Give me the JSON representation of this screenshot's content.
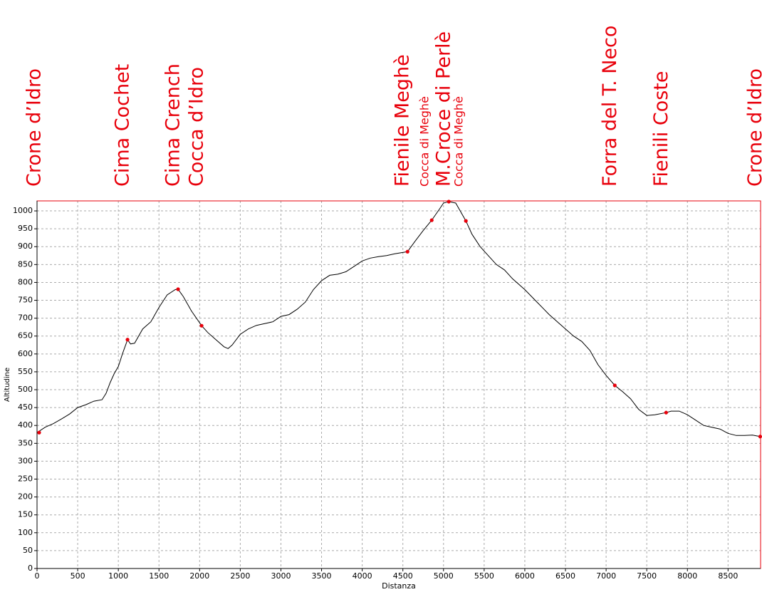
{
  "chart_data": {
    "type": "line",
    "xlabel": "Distanza",
    "ylabel": "Altitudine",
    "xlim": [
      0,
      8900
    ],
    "ylim": [
      0,
      1028
    ],
    "xticks": [
      0,
      500,
      1000,
      1500,
      2000,
      2500,
      3000,
      3500,
      4000,
      4500,
      5000,
      5500,
      6000,
      6500,
      7000,
      7500,
      8000,
      8500
    ],
    "yticks": [
      0,
      50,
      100,
      150,
      200,
      250,
      300,
      350,
      400,
      450,
      500,
      550,
      600,
      650,
      700,
      750,
      800,
      850,
      900,
      950,
      1000
    ],
    "grid": true,
    "x": [
      0,
      100,
      200,
      300,
      400,
      500,
      600,
      700,
      800,
      850,
      900,
      950,
      1000,
      1050,
      1113,
      1150,
      1200,
      1300,
      1400,
      1500,
      1600,
      1700,
      1735,
      1800,
      1900,
      2024,
      2100,
      2200,
      2300,
      2350,
      2400,
      2500,
      2600,
      2700,
      2800,
      2900,
      3000,
      3100,
      3200,
      3300,
      3400,
      3500,
      3600,
      3700,
      3800,
      3900,
      4000,
      4100,
      4200,
      4300,
      4400,
      4557,
      4650,
      4750,
      4855,
      4950,
      5000,
      5065,
      5150,
      5275,
      5350,
      5450,
      5550,
      5650,
      5750,
      5850,
      6000,
      6150,
      6300,
      6450,
      6600,
      6700,
      6800,
      6900,
      7000,
      7107,
      7200,
      7300,
      7400,
      7500,
      7600,
      7738,
      7800,
      7900,
      8000,
      8100,
      8200,
      8300,
      8400,
      8500,
      8600,
      8700,
      8800,
      8895
    ],
    "series": [
      {
        "color": "#000000",
        "values": [
          380,
          395,
          405,
          418,
          432,
          450,
          458,
          468,
          472,
          490,
          520,
          545,
          565,
          600,
          640,
          628,
          630,
          670,
          690,
          730,
          765,
          780,
          781,
          760,
          720,
          679,
          660,
          640,
          620,
          615,
          625,
          655,
          670,
          680,
          685,
          690,
          705,
          710,
          725,
          745,
          780,
          805,
          820,
          823,
          830,
          845,
          860,
          868,
          872,
          875,
          880,
          886,
          915,
          945,
          974,
          1005,
          1022,
          1026,
          1022,
          972,
          935,
          900,
          875,
          850,
          835,
          810,
          780,
          745,
          710,
          680,
          650,
          635,
          610,
          570,
          540,
          512,
          495,
          475,
          445,
          428,
          430,
          436,
          440,
          440,
          430,
          415,
          400,
          395,
          390,
          378,
          372,
          372,
          373,
          369
        ]
      }
    ],
    "waypoint_color": "#e8000b",
    "waypoints": [
      {
        "label": "Crone d’Idro",
        "x": 26,
        "y": 380,
        "small": false
      },
      {
        "label": "Cima Cochet",
        "x": 1113,
        "y": 640,
        "small": false
      },
      {
        "label": "Cima Crench",
        "x": 1735,
        "y": 781,
        "small": false
      },
      {
        "label": "Cocca d’Idro",
        "x": 2024,
        "y": 679,
        "small": false
      },
      {
        "label": "Fienile Meghè",
        "x": 4557,
        "y": 886,
        "small": false
      },
      {
        "label": "Cocca di Meghè",
        "x": 4855,
        "y": 974,
        "small": true
      },
      {
        "label": "M.Croce di Perlè",
        "x": 5065,
        "y": 1026,
        "small": false
      },
      {
        "label": "Cocca di Meghè",
        "x": 5275,
        "y": 972,
        "small": true
      },
      {
        "label": "Forra del T. Neco",
        "x": 7107,
        "y": 512,
        "small": false
      },
      {
        "label": "Fienili Coste",
        "x": 7738,
        "y": 436,
        "small": false
      },
      {
        "label": "Crone d’Idro",
        "x": 8895,
        "y": 369,
        "small": false
      }
    ]
  }
}
